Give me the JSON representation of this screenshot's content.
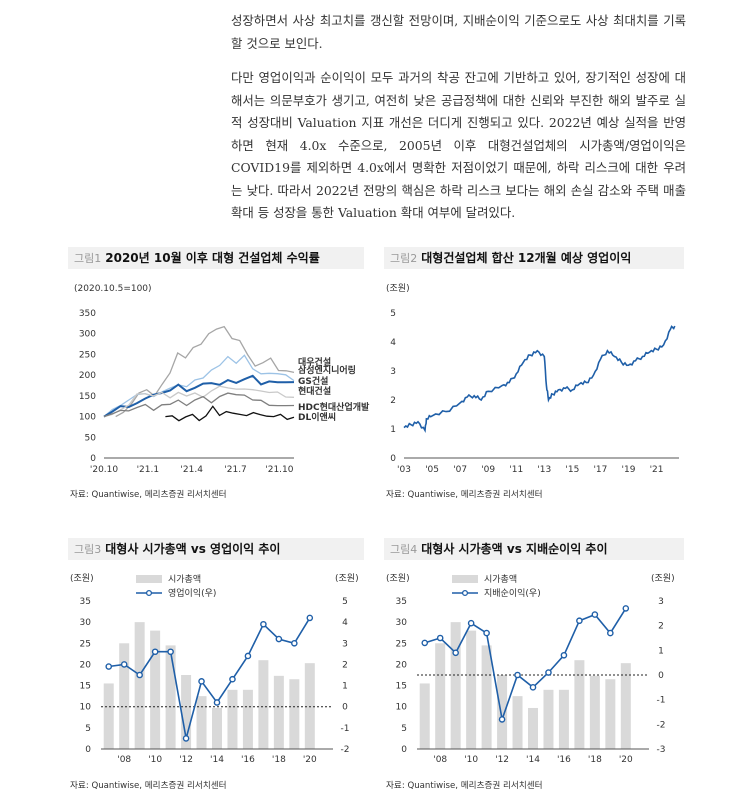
{
  "text": {
    "para1": "성장하면서 사상 최고치를 갱신할 전망이며, 지배순이익 기준으로도 사상 최대치를 기록할 것으로 보인다.",
    "para2": "다만 영업이익과 순이익이 모두 과거의 착공 잔고에 기반하고 있어, 장기적인 성장에 대해서는 의문부호가 생기고, 여전히 낮은 공급정책에 대한 신뢰와 부진한 해외 발주로 실적 성장대비 Valuation 지표 개선은 더디게 진행되고 있다. 2022년 예상 실적을 반영하면 현재 4.0x 수준으로, 2005년 이후 대형건설업체의 시가총액/영업이익은 COVID19를 제외하면 4.0x에서 명확한 저점이었기 때문에, 하락 리스크에 대한 우려는 낮다. 따라서 2022년 전망의 핵심은 하락 리스크 보다는 해외 손실 감소와 주택 매출 확대 등 성장을 통한 Valuation 확대 여부에 달려있다."
  },
  "figures": {
    "fig1": {
      "num": "그림1",
      "title": "2020년 10월 이후 대형 건설업체 수익률",
      "source": "자료: Quantiwise, 메리츠증권 리서치센터"
    },
    "fig2": {
      "num": "그림2",
      "title": "대형건설업체 합산 12개월 예상 영업이익",
      "source": "자료: Quantiwise, 메리츠증권 리서치센터"
    },
    "fig3": {
      "num": "그림3",
      "title": "대형사 시가총액 vs 영업이익 추이",
      "source": "자료: Quantiwise, 메리츠증권 리서치센터"
    },
    "fig4": {
      "num": "그림4",
      "title": "대형사 시가총액 vs 지배순이익 추이",
      "source": "자료: Quantiwise, 메리츠증권 리서치센터"
    }
  },
  "chart_data": [
    {
      "type": "line",
      "title": "2020년 10월 이후 대형 건설업체 수익률",
      "unit_label": "(2020.10.5=100)",
      "ylim": [
        0,
        350
      ],
      "yticks": [
        0,
        50,
        100,
        150,
        200,
        250,
        300,
        350
      ],
      "xtick_labels": [
        "'20.10",
        "'21.1",
        "'21.4",
        "'21.7",
        "'21.10"
      ],
      "x_range": [
        0,
        13
      ],
      "x_tick_positions": [
        0,
        3,
        6,
        9,
        12
      ],
      "series": [
        {
          "name": "대우건설",
          "color": "#a6a6a6",
          "start": 0.8,
          "values": [
            100,
            112,
            128,
            152,
            168,
            150,
            175,
            210,
            255,
            240,
            262,
            278,
            300,
            308,
            322,
            290,
            282,
            245,
            225,
            230,
            238,
            216,
            212,
            205
          ]
        },
        {
          "name": "삼성엔지니어링",
          "color": "#9dc3e6",
          "start": 0,
          "values": [
            100,
            112,
            130,
            140,
            150,
            160,
            150,
            158,
            164,
            180,
            172,
            185,
            198,
            214,
            222,
            240,
            232,
            248,
            212,
            208,
            206,
            202,
            196,
            190
          ]
        },
        {
          "name": "GS건설",
          "color": "#1f5fa8",
          "start": 0,
          "values": [
            100,
            112,
            122,
            128,
            134,
            142,
            148,
            160,
            163,
            174,
            166,
            171,
            178,
            176,
            180,
            188,
            178,
            195,
            200,
            176,
            180,
            186,
            183,
            180
          ]
        },
        {
          "name": "현대건설",
          "color": "#c9c9c9",
          "start": 0,
          "values": [
            100,
            110,
            118,
            126,
            150,
            158,
            150,
            155,
            150,
            160,
            148,
            152,
            150,
            162,
            170,
            174,
            168,
            165,
            160,
            165,
            158,
            156,
            152,
            148
          ]
        },
        {
          "name": "HDC현대산업개발",
          "color": "#7f7f7f",
          "start": 0,
          "values": [
            100,
            105,
            110,
            117,
            122,
            126,
            120,
            130,
            128,
            135,
            130,
            140,
            145,
            138,
            150,
            155,
            148,
            155,
            140,
            136,
            132,
            128,
            125,
            122
          ]
        },
        {
          "name": "DL이앤씨",
          "color": "#111111",
          "start": 4.2,
          "values": [
            100,
            105,
            90,
            96,
            110,
            92,
            100,
            120,
            106,
            112,
            105,
            110,
            104,
            108,
            100,
            104,
            100,
            102,
            98,
            100
          ]
        }
      ]
    },
    {
      "type": "line",
      "title": "대형건설업체 합산 12개월 예상 영업이익",
      "unit_label": "(조원)",
      "ylim": [
        0,
        5
      ],
      "yticks": [
        0,
        1,
        2,
        3,
        4,
        5
      ],
      "xtick_labels": [
        "'03",
        "'05",
        "'07",
        "'09",
        "'11",
        "'13",
        "'15",
        "'17",
        "'19",
        "'21"
      ],
      "x_range": [
        2003,
        2022.6
      ],
      "x_tick_positions": [
        2003,
        2005,
        2007,
        2009,
        2011,
        2013,
        2015,
        2017,
        2019,
        2021
      ],
      "series": [
        {
          "name": "합산 12개월 예상 영업이익",
          "color": "#1f5fa8",
          "points": [
            [
              2003,
              1.05
            ],
            [
              2003.5,
              1.15
            ],
            [
              2004,
              1.25
            ],
            [
              2004.5,
              0.95
            ],
            [
              2004.6,
              1.35
            ],
            [
              2005,
              1.45
            ],
            [
              2006,
              1.6
            ],
            [
              2007,
              1.9
            ],
            [
              2007.5,
              2.1
            ],
            [
              2008,
              2.15
            ],
            [
              2008.5,
              2.0
            ],
            [
              2009,
              2.3
            ],
            [
              2010,
              2.5
            ],
            [
              2010.5,
              2.6
            ],
            [
              2011,
              2.9
            ],
            [
              2011.5,
              3.3
            ],
            [
              2012,
              3.55
            ],
            [
              2012.5,
              3.7
            ],
            [
              2013,
              3.5
            ],
            [
              2013.15,
              2.5
            ],
            [
              2013.3,
              2.0
            ],
            [
              2013.6,
              2.2
            ],
            [
              2014,
              2.35
            ],
            [
              2014.5,
              2.4
            ],
            [
              2015,
              2.35
            ],
            [
              2015.5,
              2.55
            ],
            [
              2016,
              2.6
            ],
            [
              2016.5,
              2.85
            ],
            [
              2017,
              3.4
            ],
            [
              2017.5,
              3.7
            ],
            [
              2018,
              3.5
            ],
            [
              2018.5,
              3.3
            ],
            [
              2019,
              3.2
            ],
            [
              2019.5,
              3.35
            ],
            [
              2020,
              3.5
            ],
            [
              2020.5,
              3.65
            ],
            [
              2021,
              3.75
            ],
            [
              2021.5,
              3.9
            ],
            [
              2022,
              4.45
            ],
            [
              2022.3,
              4.55
            ]
          ]
        }
      ]
    },
    {
      "type": "bar",
      "title": "대형사 시가총액 vs 영업이익 추이",
      "left_unit": "(조원)",
      "right_unit": "(조원)",
      "categories": [
        "2007",
        "2008",
        "2009",
        "2010",
        "2011",
        "2012",
        "2013",
        "2014",
        "2015",
        "2016",
        "2017",
        "2018",
        "2019",
        "2020",
        "2021"
      ],
      "xtick_labels": [
        "'08",
        "'10",
        "'12",
        "'14",
        "'16",
        "'18",
        "'20"
      ],
      "ylim_left": [
        0,
        35
      ],
      "yticks_left": [
        0,
        5,
        10,
        15,
        20,
        25,
        30,
        35
      ],
      "ylim_right": [
        -2,
        5
      ],
      "yticks_right": [
        -2,
        -1,
        0,
        1,
        2,
        3,
        4,
        5
      ],
      "reference_line": 10,
      "series": [
        {
          "name": "시가총액",
          "axis": "left",
          "type": "bar",
          "color": "#d9d9d9",
          "values": [
            15.5,
            25,
            30,
            28,
            24.5,
            17.5,
            12.5,
            9.7,
            14,
            14,
            21,
            17.3,
            16.5,
            20.3,
            null
          ]
        },
        {
          "name": "영업이익(우)",
          "axis": "right",
          "type": "line",
          "color": "#1f5fa8",
          "values": [
            1.9,
            2.0,
            1.5,
            2.6,
            2.6,
            -1.5,
            1.2,
            0.2,
            1.3,
            2.4,
            3.9,
            3.2,
            3.0,
            4.2,
            null
          ]
        }
      ]
    },
    {
      "type": "bar",
      "title": "대형사 시가총액 vs 지배순이익 추이",
      "left_unit": "(조원)",
      "right_unit": "(조원)",
      "categories": [
        "2007",
        "2008",
        "2009",
        "2010",
        "2011",
        "2012",
        "2013",
        "2014",
        "2015",
        "2016",
        "2017",
        "2018",
        "2019",
        "2020",
        "2021"
      ],
      "xtick_labels": [
        "'08",
        "'10",
        "'12",
        "'14",
        "'16",
        "'18",
        "'20"
      ],
      "ylim_left": [
        0,
        35
      ],
      "yticks_left": [
        0,
        5,
        10,
        15,
        20,
        25,
        30,
        35
      ],
      "ylim_right": [
        -3,
        3
      ],
      "yticks_right": [
        -3,
        -2,
        -1,
        0,
        1,
        2,
        3
      ],
      "reference_line": 0,
      "series": [
        {
          "name": "시가총액",
          "axis": "left",
          "type": "bar",
          "color": "#d9d9d9",
          "values": [
            15.5,
            25,
            30,
            28,
            24.5,
            17.5,
            12.5,
            9.7,
            14,
            14,
            21,
            17.3,
            16.5,
            20.3,
            null
          ]
        },
        {
          "name": "지배순이익(우)",
          "axis": "right",
          "type": "line",
          "color": "#1f5fa8",
          "values": [
            1.3,
            1.5,
            0.9,
            2.1,
            1.7,
            -1.8,
            0.0,
            -0.5,
            0.1,
            0.8,
            2.2,
            2.45,
            1.7,
            2.7,
            null
          ]
        }
      ]
    }
  ]
}
